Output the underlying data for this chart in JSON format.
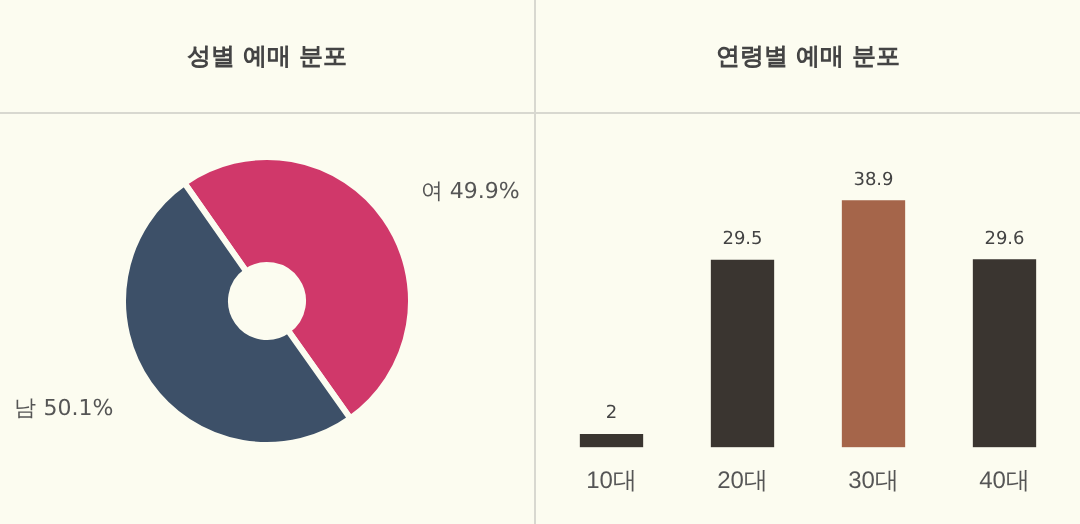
{
  "chart_data": [
    {
      "type": "donut",
      "title": "성별 예매 분포",
      "categories": [
        "여",
        "남"
      ],
      "values": [
        49.9,
        50.1
      ],
      "colors": [
        "#d0386a",
        "#3d5068"
      ],
      "value_labels": [
        "49.9%",
        "50.1%"
      ],
      "legend": false
    },
    {
      "type": "bar",
      "title": "연령별 예매 분포",
      "categories": [
        "10대",
        "20대",
        "30대",
        "40대"
      ],
      "values": [
        2,
        29.5,
        38.9,
        29.6
      ],
      "colors": [
        "#3a3530",
        "#3a3530",
        "#a5654a",
        "#3a3530"
      ],
      "data_labels": true,
      "tick_labels": "x",
      "grid": false,
      "legend": false
    }
  ]
}
